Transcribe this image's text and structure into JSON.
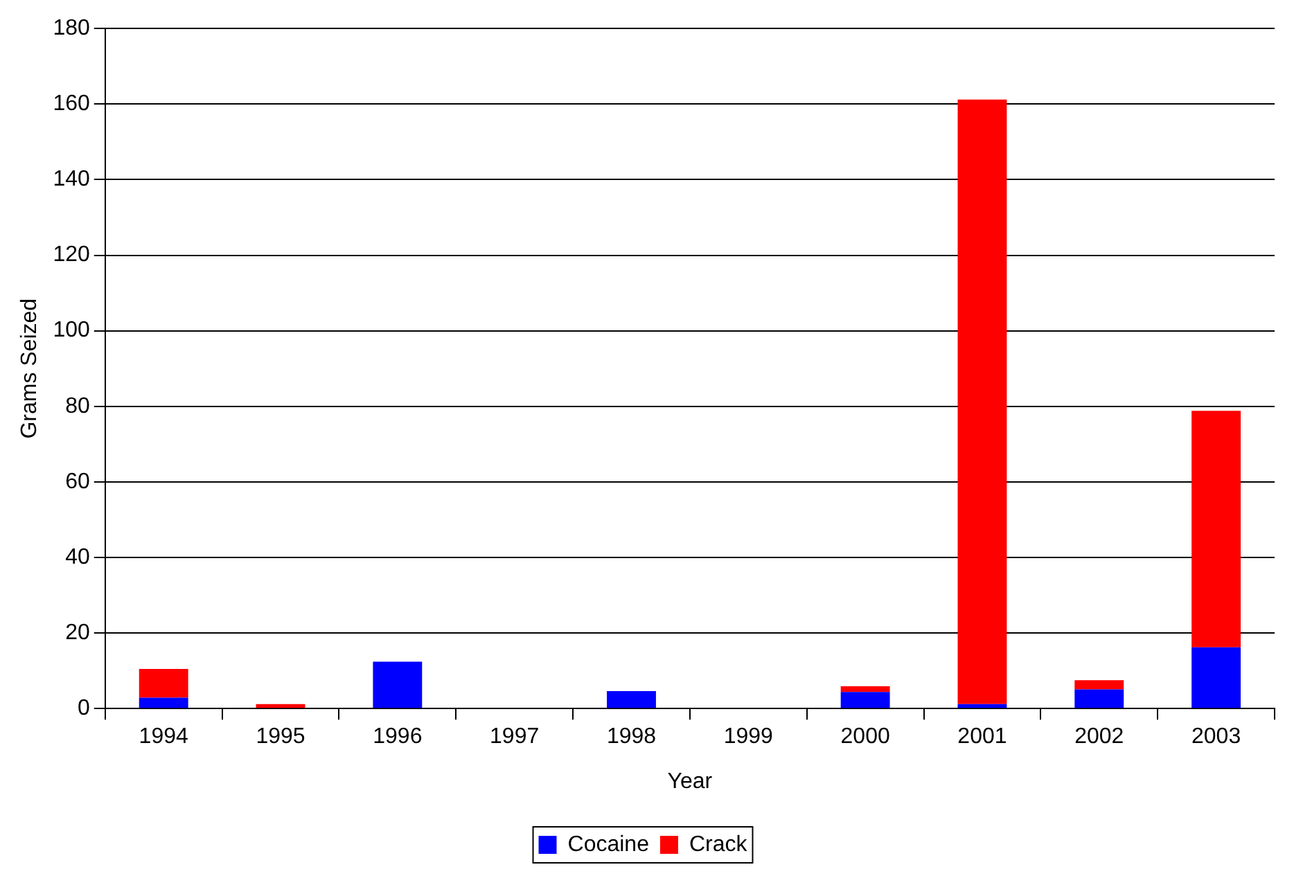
{
  "chart_data": {
    "type": "bar",
    "xlabel": "Year",
    "ylabel": "Grams Seized",
    "categories": [
      "1994",
      "1995",
      "1996",
      "1997",
      "1998",
      "1999",
      "2000",
      "2001",
      "2002",
      "2003"
    ],
    "stacked": true,
    "series": [
      {
        "name": "Cocaine",
        "color": "#0000ff",
        "values": [
          2.9,
          0,
          12.4,
          0,
          4.6,
          0,
          4.4,
          1.2,
          5.1,
          16.2
        ]
      },
      {
        "name": "Crack",
        "color": "#ff0000",
        "values": [
          7.6,
          1.2,
          0,
          0,
          0,
          0,
          1.5,
          160,
          2.4,
          62.6
        ]
      }
    ],
    "ylim": [
      0,
      180
    ],
    "yticks": [
      0,
      20,
      40,
      60,
      80,
      100,
      120,
      140,
      160,
      180
    ],
    "grid": "y",
    "legend": "bottom"
  }
}
